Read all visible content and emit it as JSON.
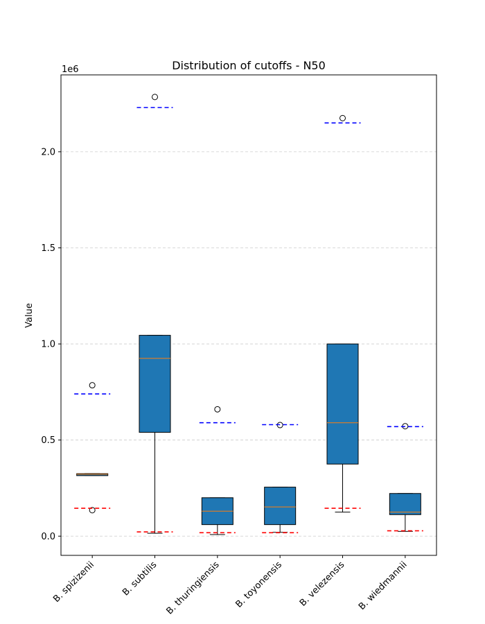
{
  "chart_data": {
    "type": "box",
    "title": "Distribution of cutoffs - N50",
    "xlabel": "",
    "ylabel": "Value",
    "y_multiplier_label": "1e6",
    "ylim": [
      -100000,
      2400000
    ],
    "y_ticks": [
      0,
      500000,
      1000000,
      1500000,
      2000000
    ],
    "y_tick_labels": [
      "0.0",
      "0.5",
      "1.0",
      "1.5",
      "2.0"
    ],
    "grid": "y-dashed",
    "colors": {
      "box_fill": "#1f77b4",
      "median": "#ff7f0e",
      "upper_cutoff": "#0000ff",
      "lower_cutoff": "#ff0000",
      "grid": "#cccccc"
    },
    "categories": [
      "B. spizizenii",
      "B. subtilis",
      "B. thuringiensis",
      "B. toyonensis",
      "B. velezensis",
      "B. wiedmannii"
    ],
    "boxes": [
      {
        "whisker_low": 315000,
        "q1": 315000,
        "median": 322000,
        "q3": 325000,
        "whisker_high": 325000,
        "outliers": [
          785000,
          135000
        ],
        "upper_cutoff": 740000,
        "lower_cutoff": 145000
      },
      {
        "whisker_low": 15000,
        "q1": 540000,
        "median": 925000,
        "q3": 1045000,
        "whisker_high": 1045000,
        "outliers": [
          2285000
        ],
        "upper_cutoff": 2230000,
        "lower_cutoff": 22000
      },
      {
        "whisker_low": 8000,
        "q1": 60000,
        "median": 130000,
        "q3": 200000,
        "whisker_high": 200000,
        "outliers": [
          660000
        ],
        "upper_cutoff": 590000,
        "lower_cutoff": 18000
      },
      {
        "whisker_low": 20000,
        "q1": 60000,
        "median": 152000,
        "q3": 255000,
        "whisker_high": 255000,
        "outliers": [
          578000
        ],
        "upper_cutoff": 580000,
        "lower_cutoff": 18000
      },
      {
        "whisker_low": 125000,
        "q1": 375000,
        "median": 590000,
        "q3": 1000000,
        "whisker_high": 1000000,
        "outliers": [
          2175000
        ],
        "upper_cutoff": 2150000,
        "lower_cutoff": 145000
      },
      {
        "whisker_low": 25000,
        "q1": 112000,
        "median": 125000,
        "q3": 222000,
        "whisker_high": 222000,
        "outliers": [
          572000
        ],
        "upper_cutoff": 570000,
        "lower_cutoff": 28000
      }
    ]
  }
}
